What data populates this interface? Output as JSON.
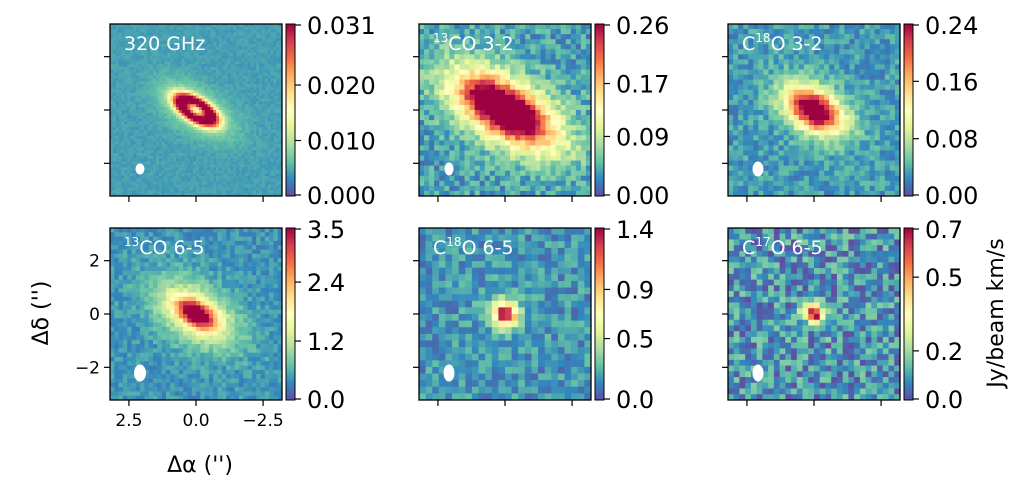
{
  "figure": {
    "panels": [
      {
        "id": "p320",
        "title_pre": "",
        "title_sup": "",
        "title_main": "320 GHz",
        "colorbar_ticks": [
          "0.031",
          "0.020",
          "0.010",
          "0.000"
        ],
        "colorbar_range": [
          0,
          0.031
        ],
        "source": "continuum"
      },
      {
        "id": "p13co32",
        "title_pre": "",
        "title_sup": "13",
        "title_main": "CO 3-2",
        "colorbar_ticks": [
          "0.26",
          "0.17",
          "0.09",
          "0.00"
        ],
        "colorbar_range": [
          0,
          0.26
        ],
        "source": "extended"
      },
      {
        "id": "pc18o32",
        "title_pre": "C",
        "title_sup": "18",
        "title_main": "O 3-2",
        "colorbar_ticks": [
          "0.24",
          "0.16",
          "0.08",
          "0.00"
        ],
        "colorbar_range": [
          0,
          0.24
        ],
        "source": "medium"
      },
      {
        "id": "p13co65",
        "title_pre": "",
        "title_sup": "13",
        "title_main": "CO 6-5",
        "colorbar_ticks": [
          "3.5",
          "2.4",
          "1.2",
          "0.0"
        ],
        "colorbar_range": [
          0,
          3.5
        ],
        "source": "compact-halo"
      },
      {
        "id": "pc18o65",
        "title_pre": "C",
        "title_sup": "18",
        "title_main": "O 6-5",
        "colorbar_ticks": [
          "1.4",
          "0.9",
          "0.5",
          "0.0"
        ],
        "colorbar_range": [
          0,
          1.4
        ],
        "source": "point"
      },
      {
        "id": "pc17o65",
        "title_pre": "C",
        "title_sup": "17",
        "title_main": "O 6-5",
        "colorbar_ticks": [
          "0.7",
          "0.5",
          "0.2",
          "0.0"
        ],
        "colorbar_range": [
          0,
          0.7
        ],
        "source": "point-noisy"
      }
    ],
    "x_ticks": [
      "2.5",
      "0.0",
      "−2.5"
    ],
    "y_ticks": [
      "2",
      "0",
      "−2"
    ],
    "x_label": "Δα ('')",
    "y_label": "Δδ ('')",
    "colorbar_unit": "Jy/beam km/s",
    "colormap": "Spectral_r"
  }
}
